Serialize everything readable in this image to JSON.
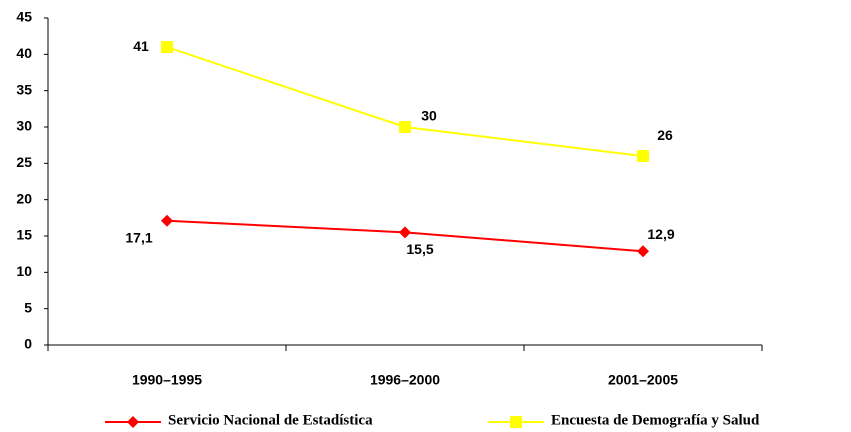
{
  "chart_data": {
    "type": "line",
    "categories": [
      "1990–1995",
      "1996–2000",
      "2001–2005"
    ],
    "series": [
      {
        "name": "Servicio Nacional de Estadística",
        "color": "#ff0000",
        "marker": "diamond",
        "values": [
          17.1,
          15.5,
          12.9
        ],
        "value_labels": [
          "17,1",
          "15,5",
          "12,9"
        ]
      },
      {
        "name": "Encuesta de Demografía y Salud",
        "color": "#ffff00",
        "marker": "square",
        "values": [
          41,
          30,
          26
        ]
      }
    ],
    "ylim": [
      0,
      45
    ],
    "yticks": [
      0,
      5,
      10,
      15,
      20,
      25,
      30,
      35,
      40,
      45
    ],
    "grid": false
  }
}
